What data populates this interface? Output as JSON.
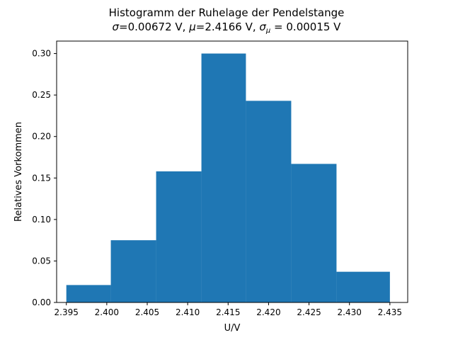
{
  "chart_data": {
    "type": "bar",
    "title": "Histogramm der Ruhelage der Pendelstange",
    "subtitle": {
      "sigma_symbol": "σ",
      "sigma_value": "=0.00672 V, ",
      "mu_symbol": "μ",
      "mu_value": "=2.4166 V, ",
      "sigma_mu_symbol": "σ",
      "sigma_mu_subscript": "μ",
      "sigma_mu_value": " = 0.00015 V"
    },
    "xlabel": "U/V",
    "ylabel": "Relatives Vorkommen",
    "xlim": [
      2.3938,
      2.4372
    ],
    "ylim": [
      0,
      0.315
    ],
    "bin_edges": [
      2.395,
      2.4005,
      2.4061,
      2.4117,
      2.4172,
      2.4228,
      2.4284,
      2.435
    ],
    "values": [
      0.021,
      0.075,
      0.158,
      0.3,
      0.243,
      0.167,
      0.037
    ],
    "xticks": [
      2.395,
      2.4,
      2.405,
      2.41,
      2.415,
      2.42,
      2.425,
      2.43,
      2.435
    ],
    "xtick_labels": [
      "2.395",
      "2.400",
      "2.405",
      "2.410",
      "2.415",
      "2.420",
      "2.425",
      "2.430",
      "2.435"
    ],
    "yticks": [
      0.0,
      0.05,
      0.1,
      0.15,
      0.2,
      0.25,
      0.3
    ],
    "ytick_labels": [
      "0.00",
      "0.05",
      "0.10",
      "0.15",
      "0.20",
      "0.25",
      "0.30"
    ],
    "grid": false,
    "bar_color": "#1f77b4"
  }
}
